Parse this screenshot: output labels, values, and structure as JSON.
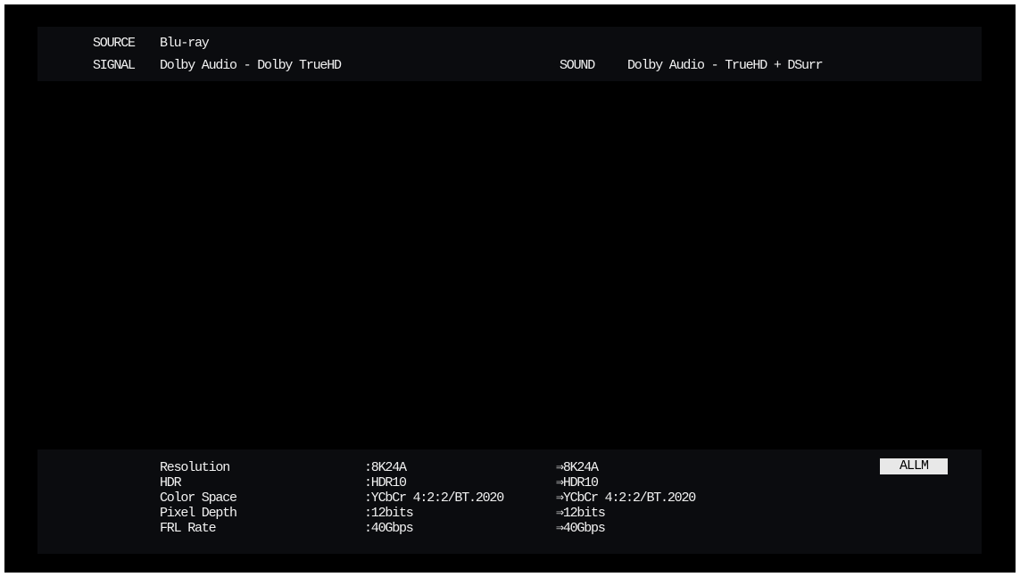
{
  "header": {
    "source_label": "SOURCE",
    "source_value": "Blu-ray",
    "signal_label": "SIGNAL",
    "signal_value": "Dolby Audio - Dolby TrueHD",
    "sound_label": "SOUND",
    "sound_value": "Dolby Audio - TrueHD + DSurr"
  },
  "video_info": {
    "rows": [
      {
        "label": "Resolution",
        "input": ":8K24A",
        "output": "⇒8K24A"
      },
      {
        "label": "HDR",
        "input": ":HDR10",
        "output": "⇒HDR10"
      },
      {
        "label": "Color Space",
        "input": ":YCbCr 4:2:2/BT.2020",
        "output": "⇒YCbCr 4:2:2/BT.2020"
      },
      {
        "label": "Pixel Depth",
        "input": ":12bits",
        "output": "⇒12bits"
      },
      {
        "label": "FRL Rate",
        "input": ":40Gbps",
        "output": "⇒40Gbps"
      }
    ],
    "badge": "ALLM"
  }
}
